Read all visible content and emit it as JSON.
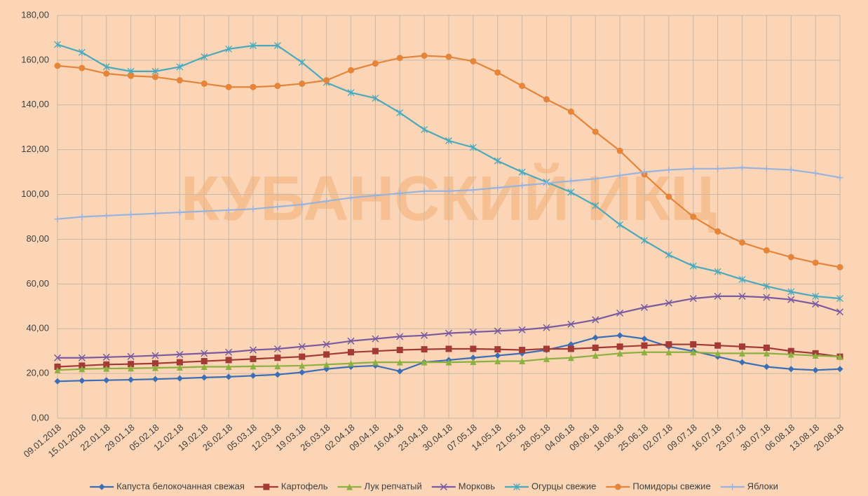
{
  "chart_data": {
    "type": "line",
    "watermark": "КУБАНСКИЙ ИКЦ",
    "categories": [
      "09.01.2018",
      "15.01.2018",
      "22.01.18",
      "29.01.18",
      "05.02.18",
      "12.02.18",
      "19.02.18",
      "26.02.18",
      "05.03.18",
      "12.03.18",
      "19.03.18",
      "26.03.18",
      "02.04.18",
      "09.04.18",
      "16.04.18",
      "23.04.18",
      "30.04.18",
      "07.05.18",
      "14.05.18",
      "21.05.18",
      "28.05.18",
      "04.06.18",
      "09.06.18",
      "18.06.18",
      "25.06.18",
      "02.07.18",
      "09.07.18",
      "16.07.18",
      "23.07.18",
      "30.07.18",
      "06.08.18",
      "13.08.18",
      "20.08.18"
    ],
    "series": [
      {
        "name": "Капуста белокочанная  свежая",
        "color": "#3a6fb7",
        "marker": "diamond",
        "values": [
          16.5,
          16.8,
          17,
          17.2,
          17.5,
          17.8,
          18.2,
          18.5,
          19,
          19.5,
          20.5,
          22,
          23,
          23.5,
          21,
          25,
          26,
          27,
          28,
          29,
          30.5,
          33,
          36,
          37,
          35.5,
          32,
          30,
          27.5,
          25,
          23,
          22,
          21.5,
          22
        ]
      },
      {
        "name": "Картофель",
        "color": "#a33a36",
        "marker": "square",
        "values": [
          23,
          23.5,
          24,
          24.2,
          24.5,
          25,
          25.5,
          26,
          26.5,
          27,
          27.5,
          28.5,
          29.5,
          30,
          30.5,
          30.8,
          31,
          31,
          30.8,
          30.5,
          31,
          31,
          31.5,
          32,
          32.5,
          33,
          33,
          32.5,
          32,
          31.5,
          30,
          29,
          27.5
        ]
      },
      {
        "name": "Лук репчатый",
        "color": "#8db040",
        "marker": "triangle",
        "values": [
          21.5,
          22,
          22.2,
          22.3,
          22.5,
          22.7,
          23,
          23,
          23.2,
          23.3,
          23.5,
          24,
          24.5,
          25,
          25,
          25,
          25,
          25.2,
          25.5,
          25.5,
          26.5,
          27,
          28,
          29,
          29.5,
          29.5,
          29.5,
          29,
          29,
          29,
          28.5,
          28,
          27.5
        ]
      },
      {
        "name": "Морковь",
        "color": "#7a5aa0",
        "marker": "x",
        "values": [
          27,
          27,
          27.3,
          27.6,
          28,
          28.5,
          29,
          29.5,
          30.5,
          31,
          32,
          33,
          34.5,
          35.5,
          36.5,
          37,
          38,
          38.5,
          39,
          39.5,
          40.5,
          42,
          44,
          47,
          49.5,
          51.5,
          53.5,
          54.5,
          54.5,
          54,
          53,
          51,
          47.5
        ]
      },
      {
        "name": "Огурцы свежие",
        "color": "#4aa9bd",
        "marker": "star",
        "values": [
          167,
          163.5,
          157,
          155,
          155,
          157,
          161.5,
          165,
          166.5,
          166.5,
          159,
          150,
          145.5,
          143,
          136.5,
          129,
          124,
          121,
          115,
          110,
          105.5,
          101,
          95,
          86.5,
          79.5,
          73,
          68,
          65.5,
          62,
          59,
          56.5,
          54.5,
          53.5
        ]
      },
      {
        "name": "Помидоры свежие",
        "color": "#e6853a",
        "marker": "circle",
        "values": [
          157.5,
          156.5,
          154,
          153,
          152.5,
          151,
          149.5,
          148,
          148,
          148.5,
          149.5,
          151,
          155.5,
          158.5,
          161,
          162,
          161.5,
          159.5,
          154.5,
          148.5,
          142.5,
          137,
          128,
          119.5,
          109,
          99,
          90,
          83.5,
          78.5,
          75,
          72,
          69.5,
          67.5
        ]
      },
      {
        "name": "Яблоки",
        "color": "#98b3de",
        "marker": "plus",
        "values": [
          89,
          90,
          90.5,
          91,
          91.5,
          92,
          92.5,
          93,
          93.5,
          94.5,
          95.5,
          97,
          98.5,
          99.5,
          100.5,
          101.5,
          101.5,
          102,
          103,
          104,
          105,
          106,
          107,
          108.5,
          110,
          111,
          111.5,
          111.5,
          112,
          111.5,
          111,
          109.5,
          107.5
        ]
      }
    ],
    "ylim": [
      0,
      180
    ],
    "yticks": [
      {
        "value": 0,
        "label": "0,00"
      },
      {
        "value": 20,
        "label": "20,00"
      },
      {
        "value": 40,
        "label": "40,00"
      },
      {
        "value": 60,
        "label": "60,00"
      },
      {
        "value": 80,
        "label": "80,00"
      },
      {
        "value": 100,
        "label": "100,00"
      },
      {
        "value": 120,
        "label": "120,00"
      },
      {
        "value": 140,
        "label": "140,00"
      },
      {
        "value": 160,
        "label": "160,00"
      },
      {
        "value": 180,
        "label": "180,00"
      }
    ],
    "grid": true,
    "legend": "bottom"
  }
}
